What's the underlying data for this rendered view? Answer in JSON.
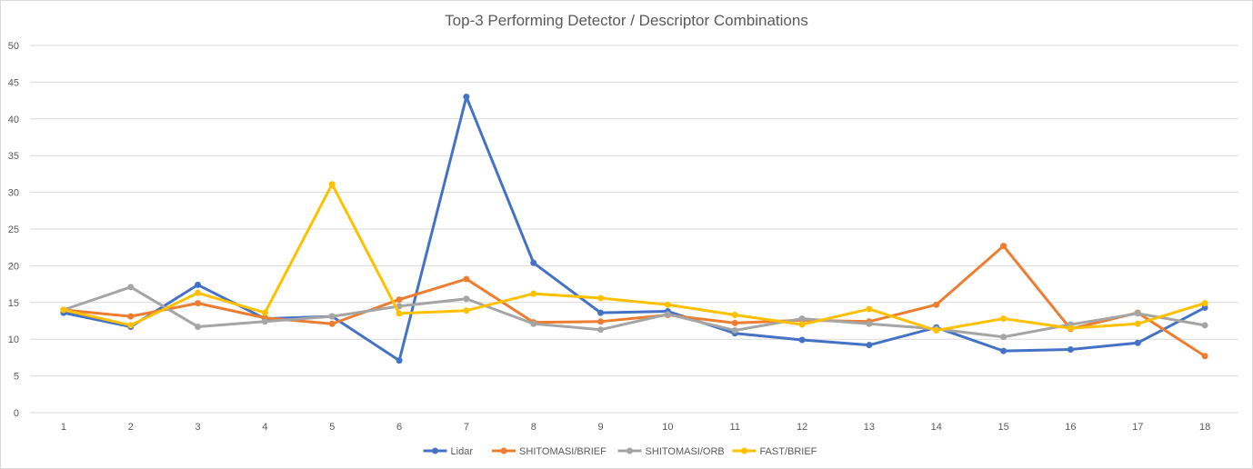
{
  "chart_data": {
    "type": "line",
    "title": "Top-3 Performing Detector / Descriptor Combinations",
    "xlabel": "",
    "ylabel": "",
    "ylim": [
      0,
      50
    ],
    "yticks": [
      0,
      5,
      10,
      15,
      20,
      25,
      30,
      35,
      40,
      45,
      50
    ],
    "categories": [
      "1",
      "2",
      "3",
      "4",
      "5",
      "6",
      "7",
      "8",
      "9",
      "10",
      "11",
      "12",
      "13",
      "14",
      "15",
      "16",
      "17",
      "18"
    ],
    "grid": true,
    "legend_position": "bottom",
    "series": [
      {
        "name": "Lidar",
        "color": "#4472c4",
        "values": [
          13.6,
          11.7,
          17.4,
          12.8,
          13.1,
          7.1,
          43.0,
          20.4,
          13.6,
          13.8,
          10.8,
          9.9,
          9.2,
          11.6,
          8.4,
          8.6,
          9.5,
          14.3
        ]
      },
      {
        "name": "SHITOMASI/BRIEF",
        "color": "#ed7d31",
        "values": [
          14.0,
          13.1,
          14.9,
          12.9,
          12.1,
          15.4,
          18.2,
          12.3,
          12.4,
          13.3,
          12.2,
          12.6,
          12.4,
          14.7,
          22.7,
          11.4,
          13.6,
          7.7
        ]
      },
      {
        "name": "SHITOMASI/ORB",
        "color": "#a5a5a5",
        "values": [
          14.0,
          17.1,
          11.7,
          12.4,
          13.1,
          14.5,
          15.5,
          12.1,
          11.3,
          13.4,
          11.2,
          12.8,
          12.1,
          11.4,
          10.3,
          12.0,
          13.5,
          11.9
        ]
      },
      {
        "name": "FAST/BRIEF",
        "color": "#ffc000",
        "values": [
          14.0,
          11.9,
          16.3,
          13.6,
          31.1,
          13.5,
          13.9,
          16.2,
          15.6,
          14.7,
          13.3,
          12.0,
          14.1,
          11.2,
          12.8,
          11.5,
          12.1,
          14.9
        ]
      }
    ]
  }
}
